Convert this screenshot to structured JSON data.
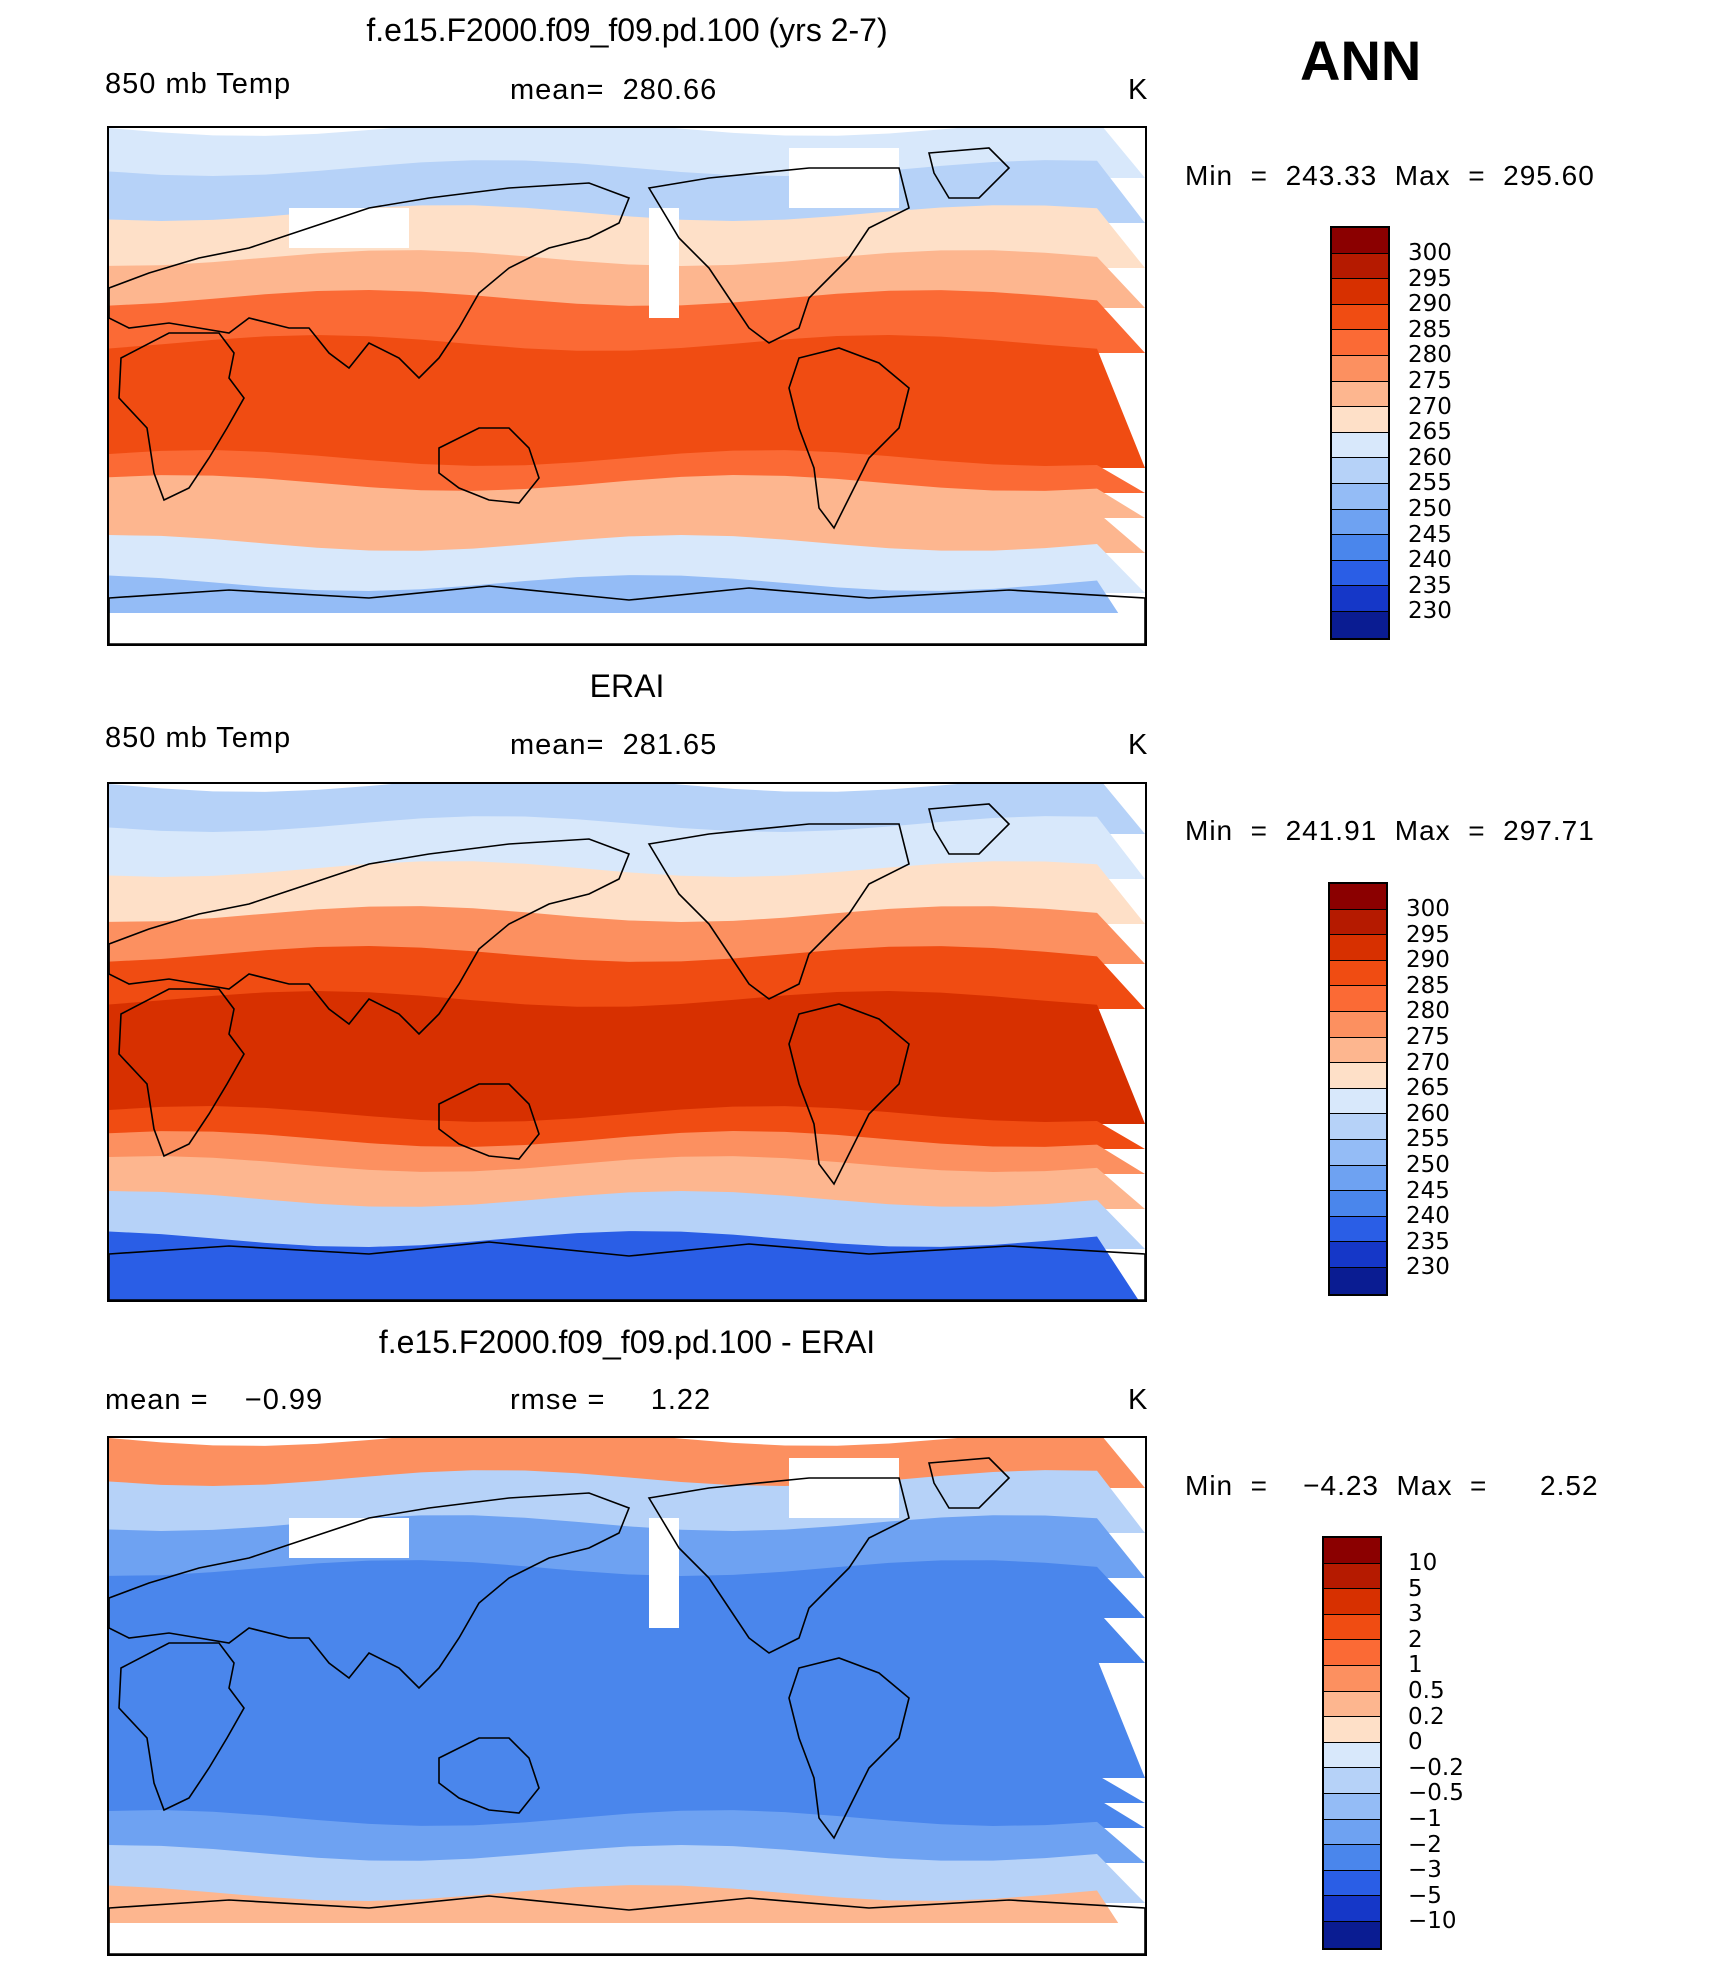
{
  "season": "ANN",
  "panels": [
    {
      "title": "f.e15.F2000.f09_f09.pd.100 (yrs 2-7)",
      "left": "850 mb Temp",
      "center": "mean=  280.66",
      "units": "K",
      "minmax": "Min  =  243.33  Max  =  295.60",
      "legend_labels": [
        "300",
        "295",
        "290",
        "285",
        "280",
        "275",
        "270",
        "265",
        "260",
        "255",
        "250",
        "245",
        "240",
        "235",
        "230"
      ],
      "legend_colors": [
        "#8b0000",
        "#b51a00",
        "#d73000",
        "#f04c12",
        "#fb6a35",
        "#fc9060",
        "#fdb68f",
        "#fee0c8",
        "#d8e8fb",
        "#b6d2f8",
        "#94bcf6",
        "#6ea2f2",
        "#4a86ec",
        "#2a5ee6",
        "#1537c8",
        "#0a1c92"
      ],
      "fields": {
        "north_pole": "#d8e8fb",
        "north_high": "#b6d2f8",
        "north_mid": "#fee0c8",
        "mid_lat": "#fdb68f",
        "sub_trop": "#fb6a35",
        "tropics": "#f04c12",
        "south_mid": "#fdb68f",
        "south_high": "#d8e8fb",
        "antarctic": "#94bcf6",
        "has_missing": true
      }
    },
    {
      "title": "ERAI",
      "left": "850 mb Temp",
      "center": "mean=  281.65",
      "units": "K",
      "minmax": "Min  =  241.91  Max  =  297.71",
      "legend_labels": [
        "300",
        "295",
        "290",
        "285",
        "280",
        "275",
        "270",
        "265",
        "260",
        "255",
        "250",
        "245",
        "240",
        "235",
        "230"
      ],
      "legend_colors": [
        "#8b0000",
        "#b51a00",
        "#d73000",
        "#f04c12",
        "#fb6a35",
        "#fc9060",
        "#fdb68f",
        "#fee0c8",
        "#d8e8fb",
        "#b6d2f8",
        "#94bcf6",
        "#6ea2f2",
        "#4a86ec",
        "#2a5ee6",
        "#1537c8",
        "#0a1c92"
      ],
      "fields": {
        "north_pole": "#b6d2f8",
        "north_high": "#d8e8fb",
        "north_mid": "#fee0c8",
        "mid_lat": "#fc9060",
        "sub_trop": "#f04c12",
        "tropics": "#d73000",
        "south_mid": "#fdb68f",
        "south_high": "#b6d2f8",
        "antarctic": "#2a5ee6",
        "has_missing": false
      }
    },
    {
      "title": "f.e15.F2000.f09_f09.pd.100 - ERAI",
      "left": "mean =    −0.99",
      "center": "rmse =     1.22",
      "units": "K",
      "minmax": "Min  =    −4.23  Max  =      2.52",
      "legend_labels": [
        "10",
        "5",
        "3",
        "2",
        "1",
        "0.5",
        "0.2",
        "0",
        "−0.2",
        "−0.5",
        "−1",
        "−2",
        "−3",
        "−5",
        "−10"
      ],
      "legend_colors": [
        "#8b0000",
        "#b51a00",
        "#d73000",
        "#f04c12",
        "#fb6a35",
        "#fc9060",
        "#fdb68f",
        "#fee0c8",
        "#d8e8fb",
        "#b6d2f8",
        "#94bcf6",
        "#6ea2f2",
        "#4a86ec",
        "#2a5ee6",
        "#1537c8",
        "#0a1c92"
      ],
      "fields": {
        "north_pole": "#fc9060",
        "north_high": "#b6d2f8",
        "north_mid": "#6ea2f2",
        "mid_lat": "#4a86ec",
        "sub_trop": "#4a86ec",
        "tropics": "#4a86ec",
        "south_mid": "#6ea2f2",
        "south_high": "#b6d2f8",
        "antarctic": "#fdb68f",
        "has_missing": true
      }
    }
  ]
}
